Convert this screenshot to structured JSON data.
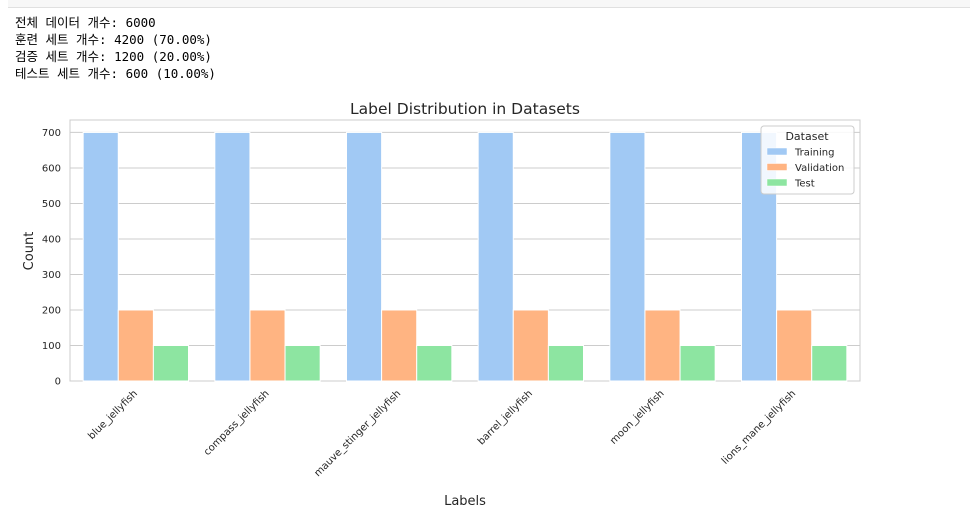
{
  "output": {
    "lines": [
      "전체 데이터 개수: 6000",
      "훈련 세트 개수: 4200 (70.00%)",
      "검증 세트 개수: 1200 (20.00%)",
      "테스트 세트 개수: 600 (10.00%)"
    ]
  },
  "chart_data": {
    "type": "bar",
    "title": "Label Distribution in Datasets",
    "xlabel": "Labels",
    "ylabel": "Count",
    "categories": [
      "blue_jellyfish",
      "compass_jellyfish",
      "mauve_stinger_jellyfish",
      "barrel_jellyfish",
      "moon_jellyfish",
      "lions_mane_jellyfish"
    ],
    "series": [
      {
        "name": "Training",
        "values": [
          700,
          700,
          700,
          700,
          700,
          700
        ],
        "color": "#a1c9f4"
      },
      {
        "name": "Validation",
        "values": [
          200,
          200,
          200,
          200,
          200,
          200
        ],
        "color": "#ffb482"
      },
      {
        "name": "Test",
        "values": [
          100,
          100,
          100,
          100,
          100,
          100
        ],
        "color": "#8de5a1"
      }
    ],
    "ylim": [
      0,
      735
    ],
    "yticks": [
      0,
      100,
      200,
      300,
      400,
      500,
      600,
      700
    ],
    "grid": true,
    "legend": {
      "title": "Dataset",
      "placement": "top-right"
    }
  }
}
